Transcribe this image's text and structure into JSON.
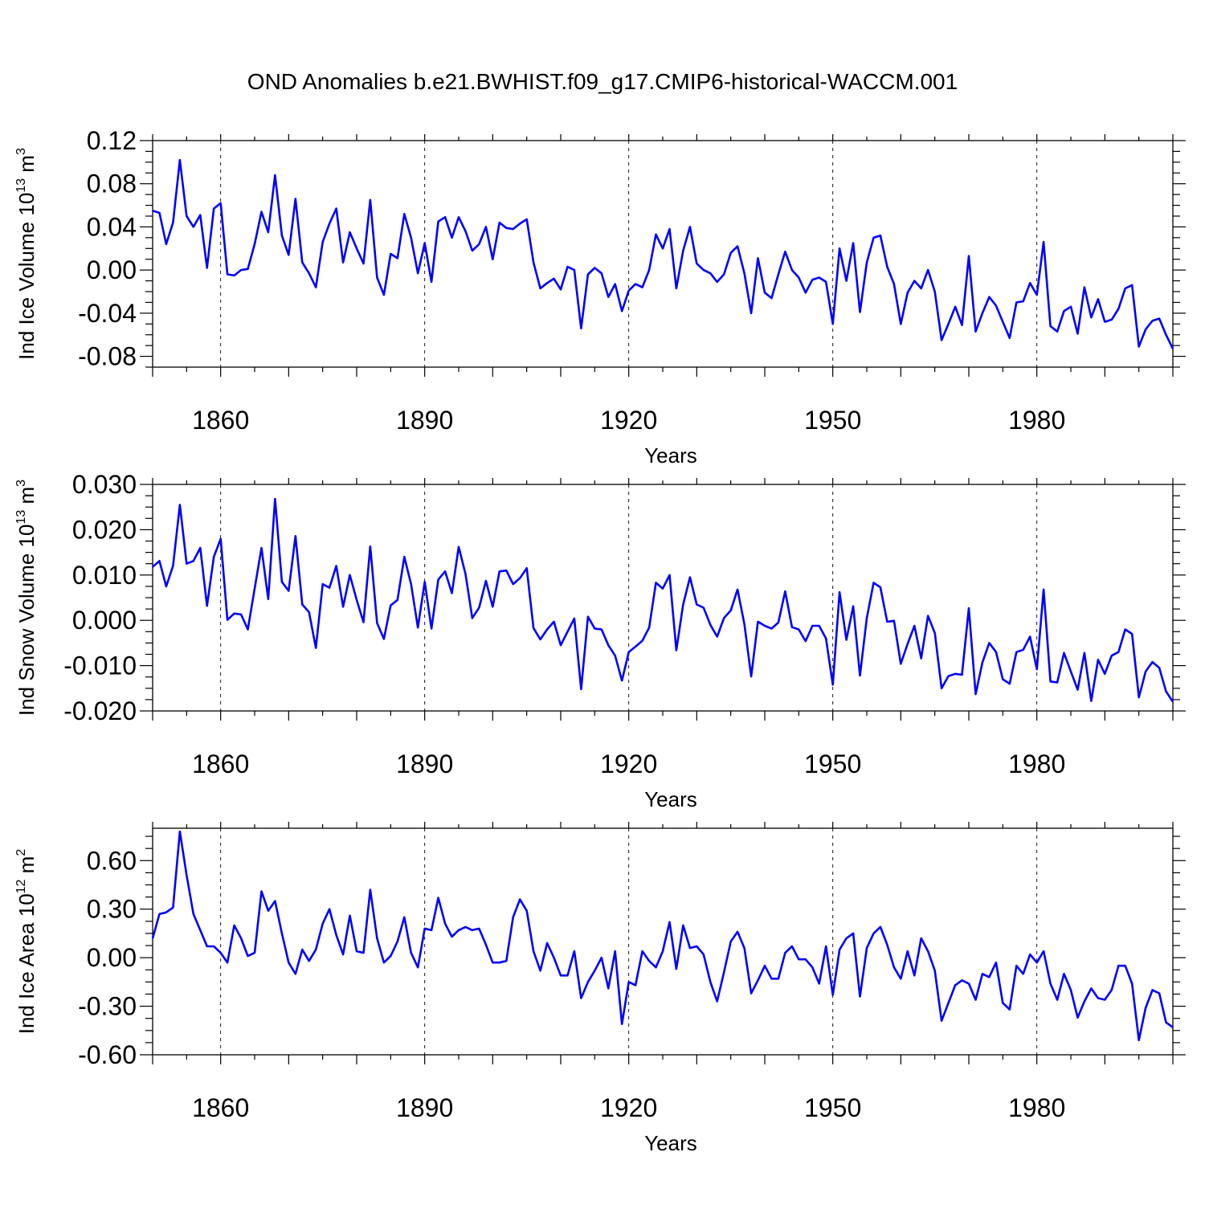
{
  "figure": {
    "title": "OND Anomalies b.e21.BWHIST.f09_g17.CMIP6-historical-WACCM.001"
  },
  "chart_data": [
    {
      "type": "line",
      "ylabel_main": "Ind Ice Volume 10",
      "ylabel_exp": "13",
      "ylabel_unit": " m",
      "ylabel_unit_exp": "3",
      "xlabel": "Years",
      "xlim": [
        1850,
        2000
      ],
      "ylim": [
        -0.09,
        0.12
      ],
      "yticks": [
        -0.08,
        -0.04,
        0.0,
        0.04,
        0.08,
        0.12
      ],
      "ytick_labels": [
        "-0.08",
        "-0.04",
        "0.00",
        "0.04",
        "0.08",
        "0.12"
      ],
      "xticks": [
        1860,
        1890,
        1920,
        1950,
        1980
      ],
      "xtick_labels": [
        "1860",
        "1890",
        "1920",
        "1950",
        "1980"
      ],
      "series_color": "#0000ff",
      "x_start": 1850,
      "values": [
        0.055,
        0.053,
        0.024,
        0.044,
        0.102,
        0.05,
        0.04,
        0.051,
        0.002,
        0.057,
        0.062,
        -0.004,
        -0.005,
        0.0,
        0.001,
        0.024,
        0.054,
        0.035,
        0.088,
        0.032,
        0.014,
        0.066,
        0.007,
        -0.003,
        -0.016,
        0.026,
        0.043,
        0.057,
        0.007,
        0.035,
        0.02,
        0.006,
        0.065,
        -0.007,
        -0.023,
        0.015,
        0.011,
        0.052,
        0.03,
        -0.003,
        0.025,
        -0.011,
        0.045,
        0.049,
        0.03,
        0.049,
        0.036,
        0.018,
        0.024,
        0.04,
        0.01,
        0.044,
        0.039,
        0.038,
        0.043,
        0.047,
        0.007,
        -0.017,
        -0.012,
        -0.008,
        -0.018,
        0.003,
        0.0,
        -0.054,
        -0.004,
        0.002,
        -0.003,
        -0.025,
        -0.013,
        -0.038,
        -0.019,
        -0.013,
        -0.016,
        0.0,
        0.033,
        0.02,
        0.038,
        -0.017,
        0.018,
        0.04,
        0.006,
        0.0,
        -0.003,
        -0.011,
        -0.004,
        0.016,
        0.022,
        -0.003,
        -0.04,
        0.011,
        -0.021,
        -0.026,
        -0.004,
        0.017,
        0.0,
        -0.007,
        -0.021,
        -0.009,
        -0.007,
        -0.011,
        -0.05,
        0.02,
        -0.01,
        0.025,
        -0.039,
        0.007,
        0.03,
        0.032,
        0.003,
        -0.013,
        -0.05,
        -0.021,
        -0.01,
        -0.017,
        0.0,
        -0.02,
        -0.065,
        -0.05,
        -0.034,
        -0.051,
        0.013,
        -0.057,
        -0.04,
        -0.025,
        -0.033,
        -0.048,
        -0.063,
        -0.03,
        -0.029,
        -0.012,
        -0.023,
        0.026,
        -0.052,
        -0.057,
        -0.038,
        -0.034,
        -0.059,
        -0.016,
        -0.044,
        -0.027,
        -0.048,
        -0.046,
        -0.036,
        -0.017,
        -0.014,
        -0.071,
        -0.055,
        -0.047,
        -0.045,
        -0.06,
        -0.073
      ]
    },
    {
      "type": "line",
      "ylabel_main": "Ind Snow Volume 10",
      "ylabel_exp": "13",
      "ylabel_unit": " m",
      "ylabel_unit_exp": "3",
      "xlabel": "Years",
      "xlim": [
        1850,
        2000
      ],
      "ylim": [
        -0.02,
        0.03
      ],
      "yticks": [
        -0.02,
        -0.01,
        0.0,
        0.01,
        0.02,
        0.03
      ],
      "ytick_labels": [
        "-0.020",
        "-0.010",
        "0.000",
        "0.010",
        "0.020",
        "0.030"
      ],
      "xticks": [
        1860,
        1890,
        1920,
        1950,
        1980
      ],
      "xtick_labels": [
        "1860",
        "1890",
        "1920",
        "1950",
        "1980"
      ],
      "series_color": "#0000ff",
      "x_start": 1850,
      "values": [
        0.0118,
        0.0131,
        0.0075,
        0.012,
        0.0255,
        0.0125,
        0.0131,
        0.016,
        0.0032,
        0.014,
        0.018,
        0.0001,
        0.0015,
        0.0013,
        -0.002,
        0.007,
        0.016,
        0.0047,
        0.0268,
        0.0085,
        0.0065,
        0.0186,
        0.0035,
        0.0018,
        -0.0061,
        0.008,
        0.0072,
        0.012,
        0.003,
        0.01,
        0.0045,
        -0.0004,
        0.0163,
        -0.0006,
        -0.0041,
        0.0033,
        0.0045,
        0.014,
        0.008,
        -0.0016,
        0.0085,
        -0.0018,
        0.009,
        0.0108,
        0.006,
        0.0162,
        0.0102,
        0.0005,
        0.0028,
        0.0087,
        0.003,
        0.0108,
        0.011,
        0.008,
        0.0093,
        0.0115,
        -0.0017,
        -0.0042,
        -0.002,
        -0.0003,
        -0.0055,
        -0.0025,
        0.0004,
        -0.0152,
        0.0008,
        -0.0018,
        -0.002,
        -0.0055,
        -0.0078,
        -0.0133,
        -0.007,
        -0.0058,
        -0.0045,
        -0.0016,
        0.0083,
        0.007,
        0.01,
        -0.0066,
        0.0035,
        0.0095,
        0.0035,
        0.0028,
        -0.001,
        -0.0036,
        0.0005,
        0.0022,
        0.0068,
        -0.0008,
        -0.0124,
        -0.0003,
        -0.0012,
        -0.0018,
        -0.0005,
        0.0064,
        -0.0015,
        -0.002,
        -0.0046,
        -0.0012,
        -0.0012,
        -0.004,
        -0.0142,
        0.0062,
        -0.0043,
        0.0031,
        -0.0122,
        0.0005,
        0.0083,
        0.0073,
        -0.0003,
        -0.0001,
        -0.0096,
        -0.0052,
        -0.0012,
        -0.0084,
        0.001,
        -0.0028,
        -0.015,
        -0.0123,
        -0.0118,
        -0.012,
        0.0027,
        -0.0163,
        -0.0093,
        -0.005,
        -0.007,
        -0.013,
        -0.014,
        -0.007,
        -0.0065,
        -0.0036,
        -0.0108,
        0.0068,
        -0.0135,
        -0.0137,
        -0.0072,
        -0.0113,
        -0.0153,
        -0.0072,
        -0.0178,
        -0.0087,
        -0.0118,
        -0.0078,
        -0.007,
        -0.002,
        -0.003,
        -0.017,
        -0.0113,
        -0.0092,
        -0.0105,
        -0.0157,
        -0.018
      ]
    },
    {
      "type": "line",
      "ylabel_main": "Ind Ice Area 10",
      "ylabel_exp": "12",
      "ylabel_unit": " m",
      "ylabel_unit_exp": "2",
      "xlabel": "Years",
      "xlim": [
        1850,
        2000
      ],
      "ylim": [
        -0.6,
        0.8
      ],
      "yticks": [
        -0.6,
        -0.3,
        0.0,
        0.3,
        0.6
      ],
      "ytick_labels": [
        "-0.60",
        "-0.30",
        "0.00",
        "0.30",
        "0.60"
      ],
      "xticks": [
        1860,
        1890,
        1920,
        1950,
        1980
      ],
      "xtick_labels": [
        "1860",
        "1890",
        "1920",
        "1950",
        "1980"
      ],
      "series_color": "#0000ff",
      "x_start": 1850,
      "values": [
        0.12,
        0.27,
        0.28,
        0.31,
        0.78,
        0.51,
        0.27,
        0.17,
        0.07,
        0.07,
        0.03,
        -0.03,
        0.2,
        0.12,
        0.01,
        0.03,
        0.41,
        0.29,
        0.35,
        0.15,
        -0.03,
        -0.1,
        0.05,
        -0.02,
        0.05,
        0.21,
        0.3,
        0.14,
        0.02,
        0.26,
        0.04,
        0.03,
        0.42,
        0.12,
        -0.03,
        0.01,
        0.1,
        0.25,
        0.03,
        -0.06,
        0.18,
        0.17,
        0.37,
        0.21,
        0.13,
        0.17,
        0.19,
        0.17,
        0.18,
        0.08,
        -0.03,
        -0.03,
        -0.02,
        0.25,
        0.36,
        0.29,
        0.04,
        -0.08,
        0.09,
        0.0,
        -0.11,
        -0.11,
        0.04,
        -0.25,
        -0.15,
        -0.08,
        0.0,
        -0.19,
        0.04,
        -0.41,
        -0.15,
        -0.17,
        0.04,
        -0.02,
        -0.06,
        0.04,
        0.22,
        -0.07,
        0.2,
        0.06,
        0.07,
        0.02,
        -0.15,
        -0.27,
        -0.09,
        0.1,
        0.16,
        0.06,
        -0.22,
        -0.14,
        -0.05,
        -0.13,
        -0.13,
        0.03,
        0.07,
        -0.01,
        -0.01,
        -0.06,
        -0.16,
        0.07,
        -0.23,
        0.05,
        0.12,
        0.15,
        -0.24,
        0.06,
        0.15,
        0.19,
        0.08,
        -0.06,
        -0.13,
        0.04,
        -0.11,
        0.12,
        0.04,
        -0.08,
        -0.39,
        -0.28,
        -0.17,
        -0.14,
        -0.16,
        -0.26,
        -0.1,
        -0.12,
        -0.03,
        -0.28,
        -0.32,
        -0.05,
        -0.1,
        0.02,
        -0.03,
        0.04,
        -0.16,
        -0.26,
        -0.1,
        -0.2,
        -0.37,
        -0.27,
        -0.19,
        -0.25,
        -0.26,
        -0.2,
        -0.05,
        -0.05,
        -0.16,
        -0.51,
        -0.31,
        -0.2,
        -0.22,
        -0.4,
        -0.43
      ]
    }
  ]
}
